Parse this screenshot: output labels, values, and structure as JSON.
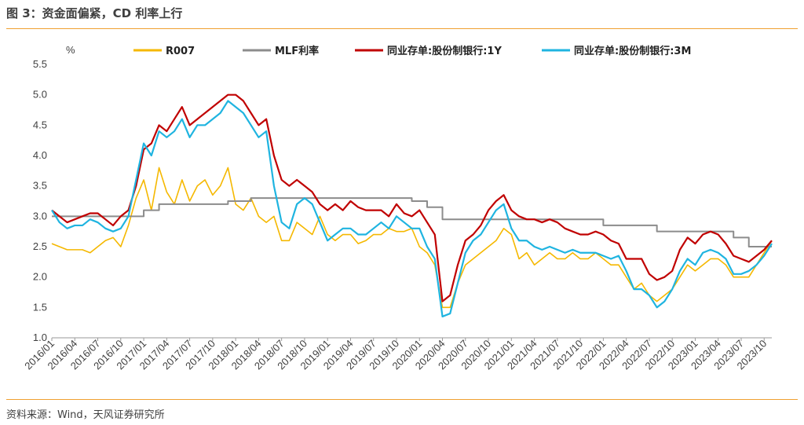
{
  "title": "图 3：资金面偏紧，CD 利率上行",
  "source": "资料来源：Wind，天风证券研究所",
  "colors": {
    "R007": "#F5B800",
    "MLF": "#8C8C8C",
    "CD1Y": "#C00000",
    "CD3M": "#1FB4E0",
    "rule": "#F0A030"
  },
  "chart_data": {
    "type": "line",
    "ylabel": "%",
    "ylim": [
      1.0,
      5.5
    ],
    "yticks": [
      "1.0",
      "1.5",
      "2.0",
      "2.5",
      "3.0",
      "3.5",
      "4.0",
      "4.5",
      "5.0",
      "5.5"
    ],
    "xlim": [
      "2016/01",
      "2023/11"
    ],
    "xticks": [
      "2016/01",
      "2016/04",
      "2016/07",
      "2016/10",
      "2017/01",
      "2017/04",
      "2017/07",
      "2017/10",
      "2018/01",
      "2018/04",
      "2018/07",
      "2018/10",
      "2019/01",
      "2019/04",
      "2019/07",
      "2019/10",
      "2020/01",
      "2020/04",
      "2020/07",
      "2020/10",
      "2021/01",
      "2021/04",
      "2021/07",
      "2021/10",
      "2022/01",
      "2022/04",
      "2022/07",
      "2022/10",
      "2023/01",
      "2023/04",
      "2023/07",
      "2023/10"
    ],
    "legend": "top",
    "series": [
      {
        "name": "R007",
        "x": [
          "2016/01",
          "2016/02",
          "2016/03",
          "2016/04",
          "2016/05",
          "2016/06",
          "2016/07",
          "2016/08",
          "2016/09",
          "2016/10",
          "2016/11",
          "2016/12",
          "2017/01",
          "2017/02",
          "2017/03",
          "2017/04",
          "2017/05",
          "2017/06",
          "2017/07",
          "2017/08",
          "2017/09",
          "2017/10",
          "2017/11",
          "2017/12",
          "2018/01",
          "2018/02",
          "2018/03",
          "2018/04",
          "2018/05",
          "2018/06",
          "2018/07",
          "2018/08",
          "2018/09",
          "2018/10",
          "2018/11",
          "2018/12",
          "2019/01",
          "2019/02",
          "2019/03",
          "2019/04",
          "2019/05",
          "2019/06",
          "2019/07",
          "2019/08",
          "2019/09",
          "2019/10",
          "2019/11",
          "2019/12",
          "2020/01",
          "2020/02",
          "2020/03",
          "2020/04",
          "2020/05",
          "2020/06",
          "2020/07",
          "2020/08",
          "2020/09",
          "2020/10",
          "2020/11",
          "2020/12",
          "2021/01",
          "2021/02",
          "2021/03",
          "2021/04",
          "2021/05",
          "2021/06",
          "2021/07",
          "2021/08",
          "2021/09",
          "2021/10",
          "2021/11",
          "2021/12",
          "2022/01",
          "2022/02",
          "2022/03",
          "2022/04",
          "2022/05",
          "2022/06",
          "2022/07",
          "2022/08",
          "2022/09",
          "2022/10",
          "2022/11",
          "2022/12",
          "2023/01",
          "2023/02",
          "2023/03",
          "2023/04",
          "2023/05",
          "2023/06",
          "2023/07",
          "2023/08",
          "2023/09",
          "2023/10",
          "2023/11"
        ],
        "values": [
          2.55,
          2.5,
          2.45,
          2.45,
          2.45,
          2.4,
          2.5,
          2.6,
          2.65,
          2.5,
          2.85,
          3.3,
          3.6,
          3.1,
          3.8,
          3.4,
          3.2,
          3.6,
          3.25,
          3.5,
          3.6,
          3.35,
          3.5,
          3.8,
          3.2,
          3.1,
          3.3,
          3.0,
          2.9,
          3.0,
          2.6,
          2.6,
          2.9,
          2.8,
          2.7,
          3.0,
          2.7,
          2.6,
          2.7,
          2.7,
          2.55,
          2.6,
          2.7,
          2.7,
          2.8,
          2.75,
          2.75,
          2.8,
          2.5,
          2.4,
          2.2,
          1.5,
          1.5,
          1.9,
          2.2,
          2.3,
          2.4,
          2.5,
          2.6,
          2.8,
          2.7,
          2.3,
          2.4,
          2.2,
          2.3,
          2.4,
          2.3,
          2.3,
          2.4,
          2.3,
          2.3,
          2.4,
          2.3,
          2.2,
          2.2,
          2.0,
          1.8,
          1.9,
          1.7,
          1.6,
          1.7,
          1.8,
          2.0,
          2.2,
          2.1,
          2.2,
          2.3,
          2.3,
          2.2,
          2.0,
          2.0,
          2.0,
          2.2,
          2.4,
          2.6
        ]
      },
      {
        "name": "MLF利率",
        "x": [
          "2016/01",
          "2017/01",
          "2017/03",
          "2017/12",
          "2018/03",
          "2018/08",
          "2019/12",
          "2020/02",
          "2020/04",
          "2022/01",
          "2022/08",
          "2023/06",
          "2023/08",
          "2023/11"
        ],
        "values": [
          3.0,
          3.1,
          3.2,
          3.25,
          3.3,
          3.3,
          3.25,
          3.15,
          2.95,
          2.85,
          2.75,
          2.65,
          2.5,
          2.5
        ]
      },
      {
        "name": "同业存单:股份制银行:1Y",
        "x": [
          "2016/01",
          "2016/02",
          "2016/03",
          "2016/04",
          "2016/05",
          "2016/06",
          "2016/07",
          "2016/08",
          "2016/09",
          "2016/10",
          "2016/11",
          "2016/12",
          "2017/01",
          "2017/02",
          "2017/03",
          "2017/04",
          "2017/05",
          "2017/06",
          "2017/07",
          "2017/08",
          "2017/09",
          "2017/10",
          "2017/11",
          "2017/12",
          "2018/01",
          "2018/02",
          "2018/03",
          "2018/04",
          "2018/05",
          "2018/06",
          "2018/07",
          "2018/08",
          "2018/09",
          "2018/10",
          "2018/11",
          "2018/12",
          "2019/01",
          "2019/02",
          "2019/03",
          "2019/04",
          "2019/05",
          "2019/06",
          "2019/07",
          "2019/08",
          "2019/09",
          "2019/10",
          "2019/11",
          "2019/12",
          "2020/01",
          "2020/02",
          "2020/03",
          "2020/04",
          "2020/05",
          "2020/06",
          "2020/07",
          "2020/08",
          "2020/09",
          "2020/10",
          "2020/11",
          "2020/12",
          "2021/01",
          "2021/02",
          "2021/03",
          "2021/04",
          "2021/05",
          "2021/06",
          "2021/07",
          "2021/08",
          "2021/09",
          "2021/10",
          "2021/11",
          "2021/12",
          "2022/01",
          "2022/02",
          "2022/03",
          "2022/04",
          "2022/05",
          "2022/06",
          "2022/07",
          "2022/08",
          "2022/09",
          "2022/10",
          "2022/11",
          "2022/12",
          "2023/01",
          "2023/02",
          "2023/03",
          "2023/04",
          "2023/05",
          "2023/06",
          "2023/07",
          "2023/08",
          "2023/09",
          "2023/10",
          "2023/11"
        ],
        "values": [
          3.1,
          3.0,
          2.9,
          2.95,
          3.0,
          3.05,
          3.05,
          2.95,
          2.85,
          3.0,
          3.1,
          3.5,
          4.1,
          4.2,
          4.5,
          4.4,
          4.6,
          4.8,
          4.5,
          4.6,
          4.7,
          4.8,
          4.9,
          5.0,
          5.0,
          4.9,
          4.7,
          4.5,
          4.6,
          4.0,
          3.6,
          3.5,
          3.6,
          3.5,
          3.4,
          3.2,
          3.1,
          3.2,
          3.1,
          3.25,
          3.15,
          3.1,
          3.1,
          3.1,
          3.0,
          3.2,
          3.05,
          3.0,
          3.1,
          2.9,
          2.7,
          1.6,
          1.7,
          2.2,
          2.6,
          2.7,
          2.85,
          3.1,
          3.25,
          3.35,
          3.1,
          3.0,
          2.95,
          2.95,
          2.9,
          2.95,
          2.9,
          2.8,
          2.75,
          2.7,
          2.7,
          2.75,
          2.7,
          2.6,
          2.55,
          2.3,
          2.3,
          2.3,
          2.05,
          1.95,
          2.0,
          2.1,
          2.45,
          2.65,
          2.55,
          2.7,
          2.75,
          2.7,
          2.55,
          2.35,
          2.3,
          2.25,
          2.35,
          2.45,
          2.6
        ]
      },
      {
        "name": "同业存单:股份制银行:3M",
        "x": [
          "2016/01",
          "2016/02",
          "2016/03",
          "2016/04",
          "2016/05",
          "2016/06",
          "2016/07",
          "2016/08",
          "2016/09",
          "2016/10",
          "2016/11",
          "2016/12",
          "2017/01",
          "2017/02",
          "2017/03",
          "2017/04",
          "2017/05",
          "2017/06",
          "2017/07",
          "2017/08",
          "2017/09",
          "2017/10",
          "2017/11",
          "2017/12",
          "2018/01",
          "2018/02",
          "2018/03",
          "2018/04",
          "2018/05",
          "2018/06",
          "2018/07",
          "2018/08",
          "2018/09",
          "2018/10",
          "2018/11",
          "2018/12",
          "2019/01",
          "2019/02",
          "2019/03",
          "2019/04",
          "2019/05",
          "2019/06",
          "2019/07",
          "2019/08",
          "2019/09",
          "2019/10",
          "2019/11",
          "2019/12",
          "2020/01",
          "2020/02",
          "2020/03",
          "2020/04",
          "2020/05",
          "2020/06",
          "2020/07",
          "2020/08",
          "2020/09",
          "2020/10",
          "2020/11",
          "2020/12",
          "2021/01",
          "2021/02",
          "2021/03",
          "2021/04",
          "2021/05",
          "2021/06",
          "2021/07",
          "2021/08",
          "2021/09",
          "2021/10",
          "2021/11",
          "2021/12",
          "2022/01",
          "2022/02",
          "2022/03",
          "2022/04",
          "2022/05",
          "2022/06",
          "2022/07",
          "2022/08",
          "2022/09",
          "2022/10",
          "2022/11",
          "2022/12",
          "2023/01",
          "2023/02",
          "2023/03",
          "2023/04",
          "2023/05",
          "2023/06",
          "2023/07",
          "2023/08",
          "2023/09",
          "2023/10",
          "2023/11"
        ],
        "values": [
          3.1,
          2.9,
          2.8,
          2.85,
          2.85,
          2.95,
          2.9,
          2.8,
          2.75,
          2.8,
          3.0,
          3.6,
          4.2,
          4.0,
          4.4,
          4.3,
          4.4,
          4.6,
          4.3,
          4.5,
          4.5,
          4.6,
          4.7,
          4.9,
          4.8,
          4.7,
          4.5,
          4.3,
          4.4,
          3.5,
          2.9,
          2.8,
          3.2,
          3.3,
          3.2,
          2.9,
          2.6,
          2.7,
          2.8,
          2.8,
          2.7,
          2.7,
          2.8,
          2.9,
          2.8,
          3.0,
          2.9,
          2.8,
          2.8,
          2.5,
          2.3,
          1.35,
          1.4,
          1.9,
          2.4,
          2.6,
          2.7,
          2.9,
          3.1,
          3.2,
          2.8,
          2.6,
          2.6,
          2.5,
          2.45,
          2.5,
          2.45,
          2.4,
          2.45,
          2.4,
          2.4,
          2.4,
          2.35,
          2.3,
          2.35,
          2.1,
          1.8,
          1.8,
          1.7,
          1.5,
          1.6,
          1.8,
          2.1,
          2.3,
          2.2,
          2.4,
          2.45,
          2.4,
          2.3,
          2.05,
          2.05,
          2.1,
          2.2,
          2.35,
          2.55
        ]
      }
    ]
  }
}
